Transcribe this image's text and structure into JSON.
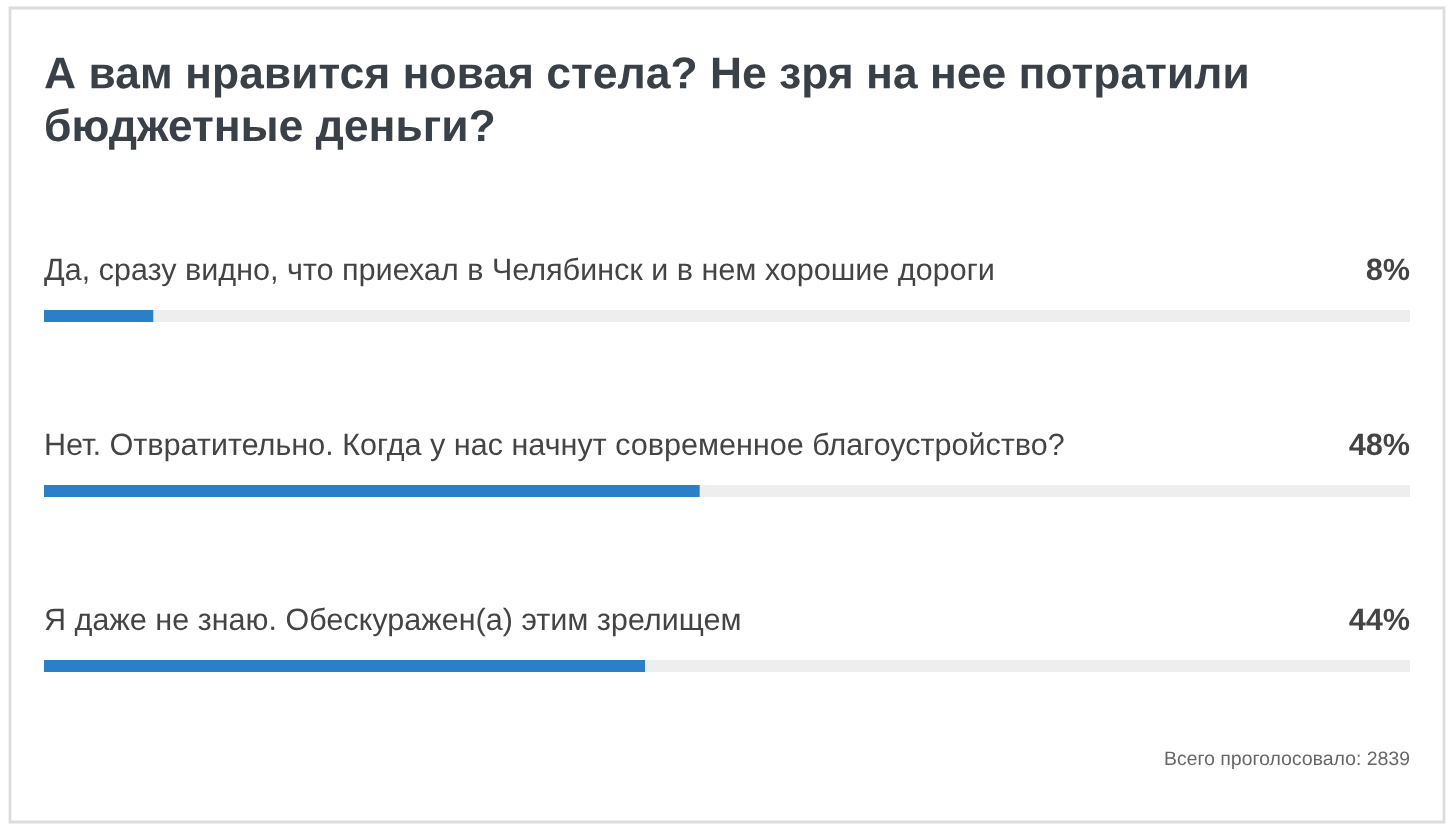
{
  "chart_data": {
    "type": "bar",
    "orientation": "horizontal",
    "title": "А вам нравится новая стела? Не зря на нее потратили бюджетные деньги?",
    "categories": [
      "Да, сразу видно, что приехал в Челябинск и в нем хорошие дороги",
      "Нет. Отвратительно. Когда у нас начнут современное благоустройство?",
      "Я даже не знаю. Обескуражен(а) этим зрелищем"
    ],
    "values": [
      8,
      48,
      44
    ],
    "value_labels": [
      "8%",
      "48%",
      "44%"
    ],
    "color": "#2b7fc8",
    "xlim": [
      0,
      100
    ],
    "annotations": [
      "Всего проголосовало: 2839"
    ]
  }
}
